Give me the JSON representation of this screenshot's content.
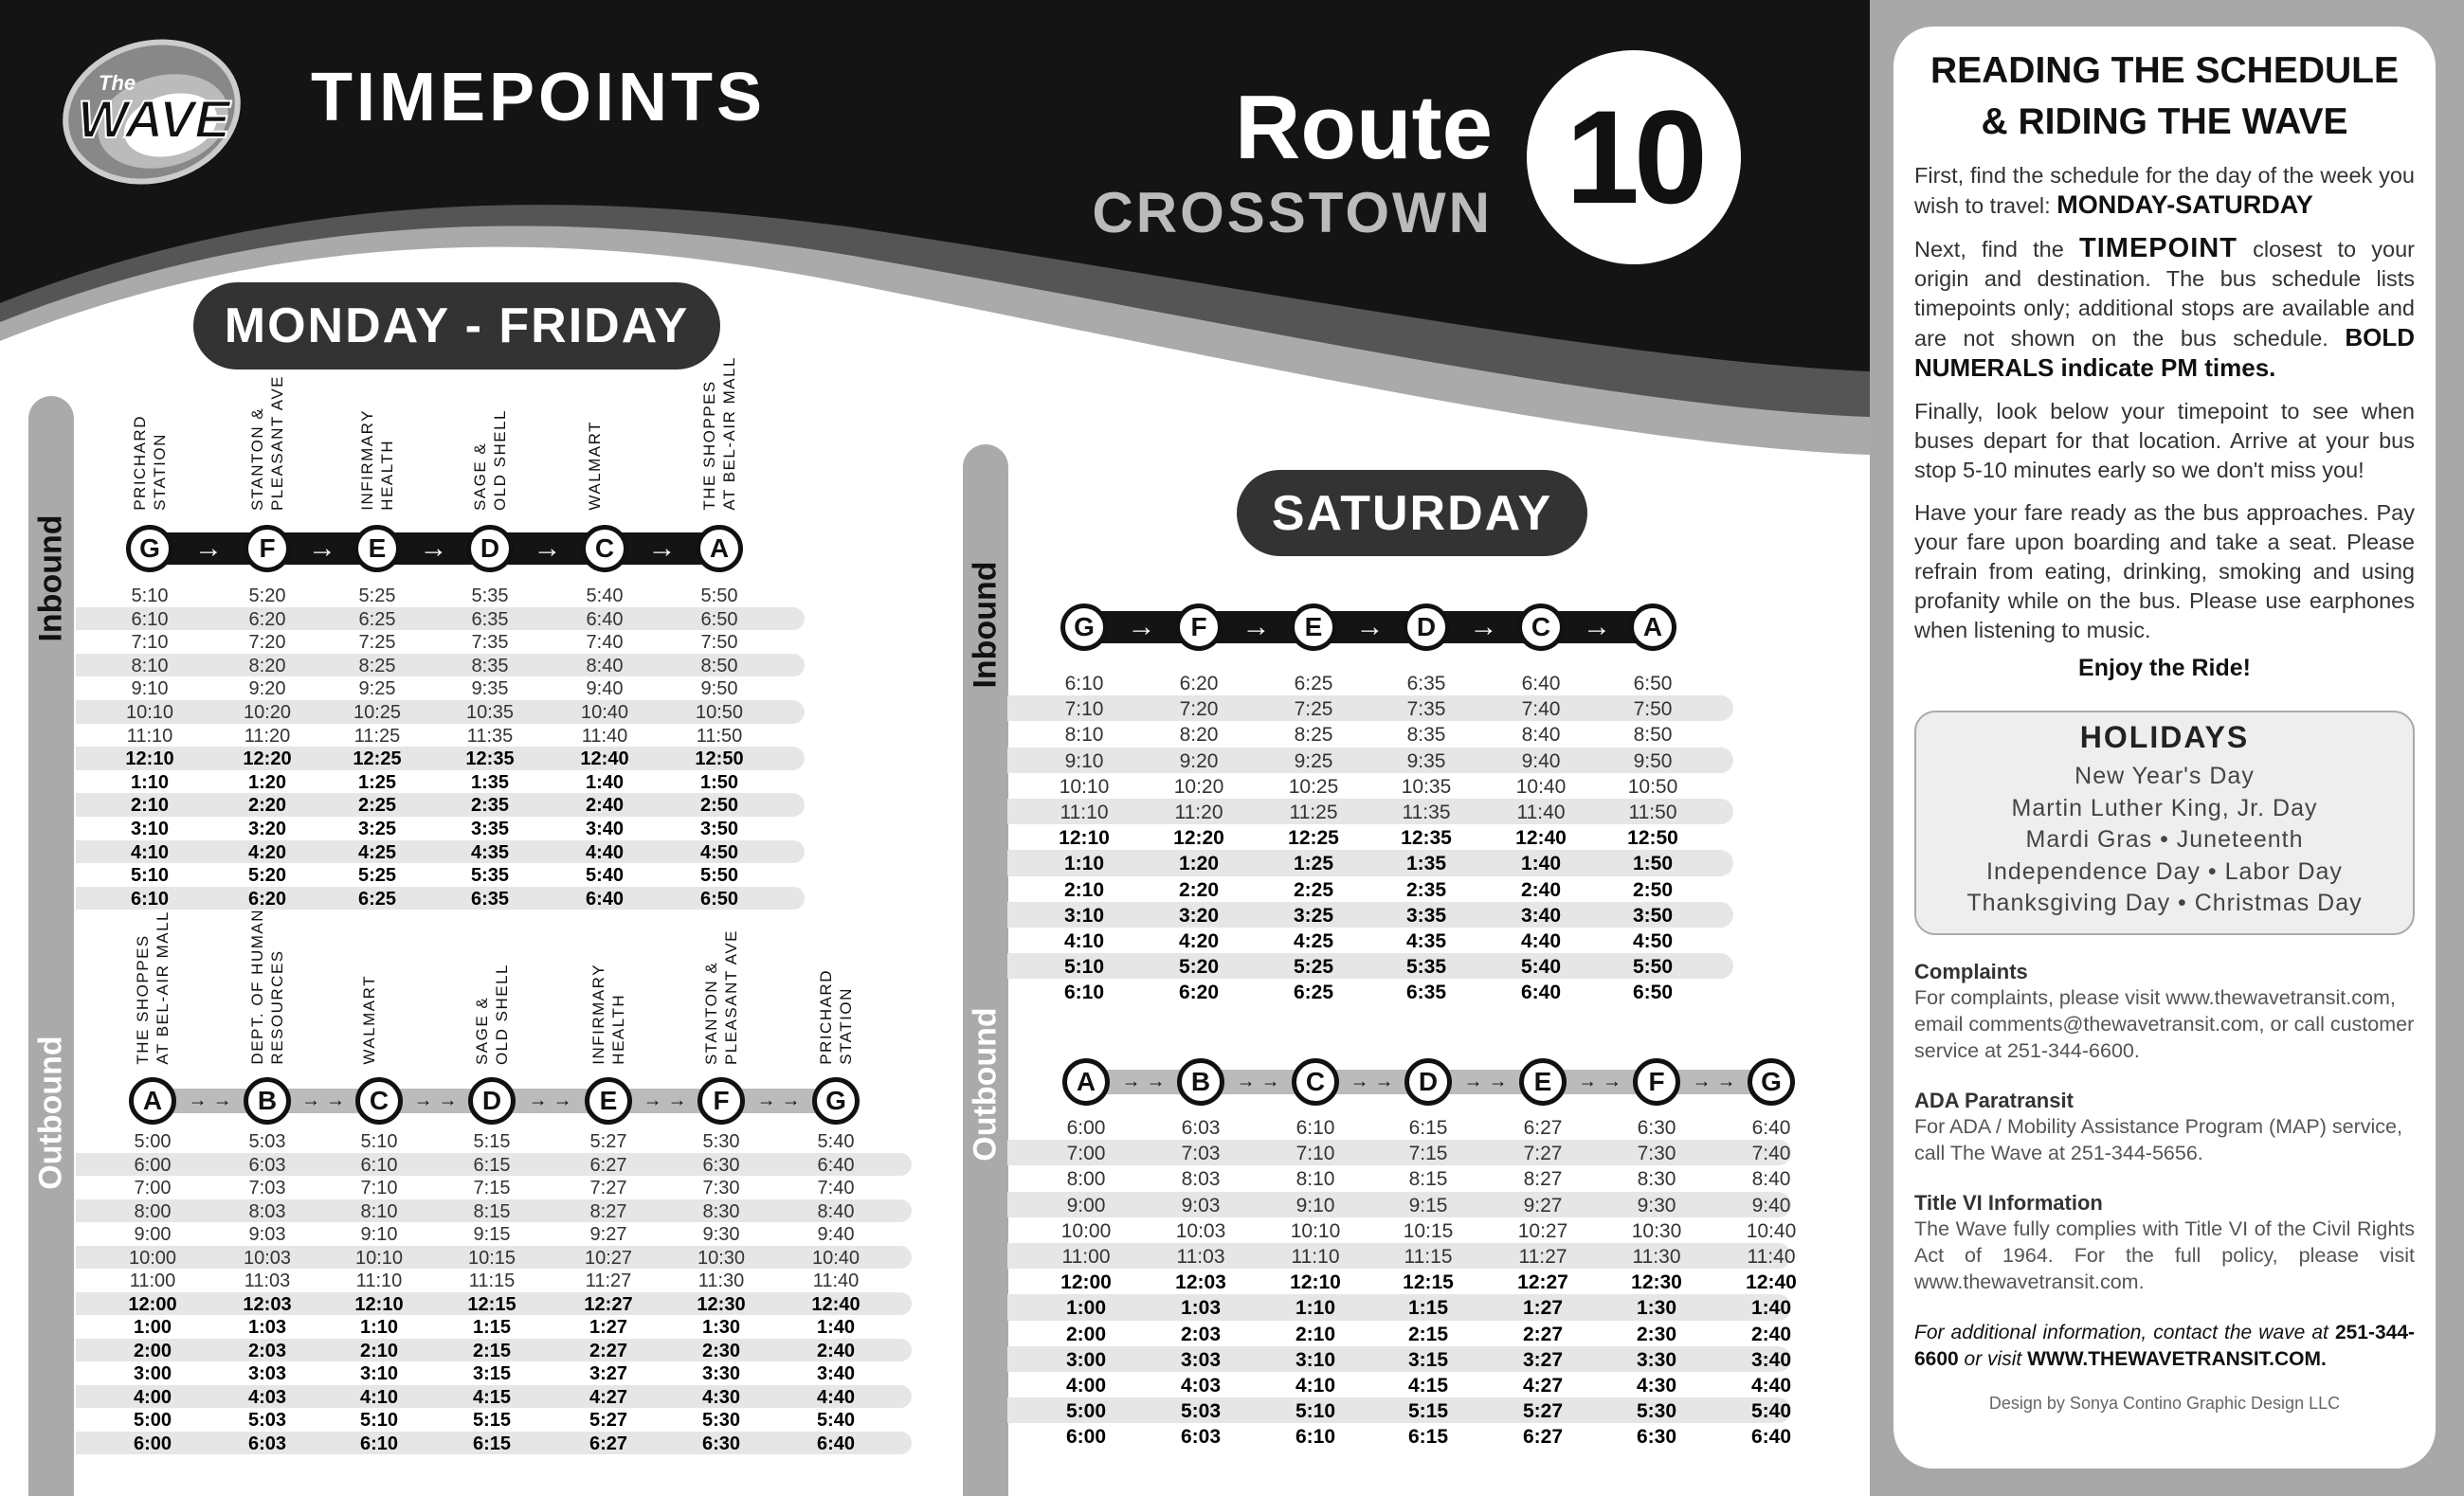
{
  "header": {
    "logo_text": {
      "small": "The",
      "large": "WAVE"
    },
    "title": "TIMEPOINTS",
    "route_word": "Route",
    "route_number": "10",
    "route_name": "CROSSTOWN"
  },
  "weekday": {
    "label": "MONDAY - FRIDAY",
    "inbound": {
      "direction_label": "Inbound",
      "stops": [
        {
          "letter": "G",
          "name": "PRICHARD\nSTATION"
        },
        {
          "letter": "F",
          "name": "STANTON &\nPLEASANT AVE"
        },
        {
          "letter": "E",
          "name": "INFIRMARY\nHEALTH"
        },
        {
          "letter": "D",
          "name": "SAGE &\nOLD SHELL"
        },
        {
          "letter": "C",
          "name": "WALMART"
        },
        {
          "letter": "A",
          "name": "THE SHOPPES\nAT BEL-AIR MALL"
        }
      ],
      "pm_start_row": 7,
      "rows": [
        [
          "5:10",
          "5:20",
          "5:25",
          "5:35",
          "5:40",
          "5:50"
        ],
        [
          "6:10",
          "6:20",
          "6:25",
          "6:35",
          "6:40",
          "6:50"
        ],
        [
          "7:10",
          "7:20",
          "7:25",
          "7:35",
          "7:40",
          "7:50"
        ],
        [
          "8:10",
          "8:20",
          "8:25",
          "8:35",
          "8:40",
          "8:50"
        ],
        [
          "9:10",
          "9:20",
          "9:25",
          "9:35",
          "9:40",
          "9:50"
        ],
        [
          "10:10",
          "10:20",
          "10:25",
          "10:35",
          "10:40",
          "10:50"
        ],
        [
          "11:10",
          "11:20",
          "11:25",
          "11:35",
          "11:40",
          "11:50"
        ],
        [
          "12:10",
          "12:20",
          "12:25",
          "12:35",
          "12:40",
          "12:50"
        ],
        [
          "1:10",
          "1:20",
          "1:25",
          "1:35",
          "1:40",
          "1:50"
        ],
        [
          "2:10",
          "2:20",
          "2:25",
          "2:35",
          "2:40",
          "2:50"
        ],
        [
          "3:10",
          "3:20",
          "3:25",
          "3:35",
          "3:40",
          "3:50"
        ],
        [
          "4:10",
          "4:20",
          "4:25",
          "4:35",
          "4:40",
          "4:50"
        ],
        [
          "5:10",
          "5:20",
          "5:25",
          "5:35",
          "5:40",
          "5:50"
        ],
        [
          "6:10",
          "6:20",
          "6:25",
          "6:35",
          "6:40",
          "6:50"
        ]
      ]
    },
    "outbound": {
      "direction_label": "Outbound",
      "stops": [
        {
          "letter": "A",
          "name": "THE SHOPPES\nAT BEL-AIR MALL"
        },
        {
          "letter": "B",
          "name": "DEPT. OF HUMAN\nRESOURCES"
        },
        {
          "letter": "C",
          "name": "WALMART"
        },
        {
          "letter": "D",
          "name": "SAGE &\nOLD SHELL"
        },
        {
          "letter": "E",
          "name": "INFIRMARY\nHEALTH"
        },
        {
          "letter": "F",
          "name": "STANTON &\nPLEASANT AVE"
        },
        {
          "letter": "G",
          "name": "PRICHARD\nSTATION"
        }
      ],
      "pm_start_row": 7,
      "rows": [
        [
          "5:00",
          "5:03",
          "5:10",
          "5:15",
          "5:27",
          "5:30",
          "5:40"
        ],
        [
          "6:00",
          "6:03",
          "6:10",
          "6:15",
          "6:27",
          "6:30",
          "6:40"
        ],
        [
          "7:00",
          "7:03",
          "7:10",
          "7:15",
          "7:27",
          "7:30",
          "7:40"
        ],
        [
          "8:00",
          "8:03",
          "8:10",
          "8:15",
          "8:27",
          "8:30",
          "8:40"
        ],
        [
          "9:00",
          "9:03",
          "9:10",
          "9:15",
          "9:27",
          "9:30",
          "9:40"
        ],
        [
          "10:00",
          "10:03",
          "10:10",
          "10:15",
          "10:27",
          "10:30",
          "10:40"
        ],
        [
          "11:00",
          "11:03",
          "11:10",
          "11:15",
          "11:27",
          "11:30",
          "11:40"
        ],
        [
          "12:00",
          "12:03",
          "12:10",
          "12:15",
          "12:27",
          "12:30",
          "12:40"
        ],
        [
          "1:00",
          "1:03",
          "1:10",
          "1:15",
          "1:27",
          "1:30",
          "1:40"
        ],
        [
          "2:00",
          "2:03",
          "2:10",
          "2:15",
          "2:27",
          "2:30",
          "2:40"
        ],
        [
          "3:00",
          "3:03",
          "3:10",
          "3:15",
          "3:27",
          "3:30",
          "3:40"
        ],
        [
          "4:00",
          "4:03",
          "4:10",
          "4:15",
          "4:27",
          "4:30",
          "4:40"
        ],
        [
          "5:00",
          "5:03",
          "5:10",
          "5:15",
          "5:27",
          "5:30",
          "5:40"
        ],
        [
          "6:00",
          "6:03",
          "6:10",
          "6:15",
          "6:27",
          "6:30",
          "6:40"
        ]
      ]
    }
  },
  "saturday": {
    "label": "SATURDAY",
    "inbound": {
      "direction_label": "Inbound",
      "stops": [
        {
          "letter": "G"
        },
        {
          "letter": "F"
        },
        {
          "letter": "E"
        },
        {
          "letter": "D"
        },
        {
          "letter": "C"
        },
        {
          "letter": "A"
        }
      ],
      "pm_start_row": 6,
      "rows": [
        [
          "6:10",
          "6:20",
          "6:25",
          "6:35",
          "6:40",
          "6:50"
        ],
        [
          "7:10",
          "7:20",
          "7:25",
          "7:35",
          "7:40",
          "7:50"
        ],
        [
          "8:10",
          "8:20",
          "8:25",
          "8:35",
          "8:40",
          "8:50"
        ],
        [
          "9:10",
          "9:20",
          "9:25",
          "9:35",
          "9:40",
          "9:50"
        ],
        [
          "10:10",
          "10:20",
          "10:25",
          "10:35",
          "10:40",
          "10:50"
        ],
        [
          "11:10",
          "11:20",
          "11:25",
          "11:35",
          "11:40",
          "11:50"
        ],
        [
          "12:10",
          "12:20",
          "12:25",
          "12:35",
          "12:40",
          "12:50"
        ],
        [
          "1:10",
          "1:20",
          "1:25",
          "1:35",
          "1:40",
          "1:50"
        ],
        [
          "2:10",
          "2:20",
          "2:25",
          "2:35",
          "2:40",
          "2:50"
        ],
        [
          "3:10",
          "3:20",
          "3:25",
          "3:35",
          "3:40",
          "3:50"
        ],
        [
          "4:10",
          "4:20",
          "4:25",
          "4:35",
          "4:40",
          "4:50"
        ],
        [
          "5:10",
          "5:20",
          "5:25",
          "5:35",
          "5:40",
          "5:50"
        ],
        [
          "6:10",
          "6:20",
          "6:25",
          "6:35",
          "6:40",
          "6:50"
        ]
      ]
    },
    "outbound": {
      "direction_label": "Outbound",
      "stops": [
        {
          "letter": "A"
        },
        {
          "letter": "B"
        },
        {
          "letter": "C"
        },
        {
          "letter": "D"
        },
        {
          "letter": "E"
        },
        {
          "letter": "F"
        },
        {
          "letter": "G"
        }
      ],
      "pm_start_row": 6,
      "rows": [
        [
          "6:00",
          "6:03",
          "6:10",
          "6:15",
          "6:27",
          "6:30",
          "6:40"
        ],
        [
          "7:00",
          "7:03",
          "7:10",
          "7:15",
          "7:27",
          "7:30",
          "7:40"
        ],
        [
          "8:00",
          "8:03",
          "8:10",
          "8:15",
          "8:27",
          "8:30",
          "8:40"
        ],
        [
          "9:00",
          "9:03",
          "9:10",
          "9:15",
          "9:27",
          "9:30",
          "9:40"
        ],
        [
          "10:00",
          "10:03",
          "10:10",
          "10:15",
          "10:27",
          "10:30",
          "10:40"
        ],
        [
          "11:00",
          "11:03",
          "11:10",
          "11:15",
          "11:27",
          "11:30",
          "11:40"
        ],
        [
          "12:00",
          "12:03",
          "12:10",
          "12:15",
          "12:27",
          "12:30",
          "12:40"
        ],
        [
          "1:00",
          "1:03",
          "1:10",
          "1:15",
          "1:27",
          "1:30",
          "1:40"
        ],
        [
          "2:00",
          "2:03",
          "2:10",
          "2:15",
          "2:27",
          "2:30",
          "2:40"
        ],
        [
          "3:00",
          "3:03",
          "3:10",
          "3:15",
          "3:27",
          "3:30",
          "3:40"
        ],
        [
          "4:00",
          "4:03",
          "4:10",
          "4:15",
          "4:27",
          "4:30",
          "4:40"
        ],
        [
          "5:00",
          "5:03",
          "5:10",
          "5:15",
          "5:27",
          "5:30",
          "5:40"
        ],
        [
          "6:00",
          "6:03",
          "6:10",
          "6:15",
          "6:27",
          "6:30",
          "6:40"
        ]
      ]
    }
  },
  "arrow_glyph": "→",
  "sidebar": {
    "title_line1": "READING THE SCHEDULE",
    "title_line2": "& RIDING THE WAVE",
    "p1_text": "First, find the schedule for the day of the week you wish to travel: ",
    "p1_bold": "MONDAY-SATURDAY",
    "p2_start": "Next, find the ",
    "p2_bold": "TIMEPOINT",
    "p2_text": " closest to your origin and destination. The bus schedule lists timepoints only; additional stops are available and are not shown on the bus schedule. ",
    "p2_bold_end": "BOLD NUMERALS indicate PM times.",
    "p3": "Finally, look below your timepoint to see when buses depart for that location. Arrive at your bus stop 5-10 minutes early so we don't miss you!",
    "p4": "Have your fare ready as the bus approaches. Pay your fare upon boarding and take a seat. Please refrain from eating, drinking, smoking and using profanity while on the bus. Please use earphones when listening to music.",
    "enjoy": "Enjoy the Ride!",
    "holidays": {
      "title": "HOLIDAYS",
      "lines": [
        "New Year's Day",
        "Martin Luther King, Jr. Day",
        "Mardi Gras • Juneteenth",
        "Independence Day • Labor Day",
        "Thanksgiving Day • Christmas Day"
      ]
    },
    "complaints": {
      "title": "Complaints",
      "text": "For complaints, please visit www.thewavetransit.com, email comments@thewavetransit.com, or call customer service at 251-344-6600."
    },
    "ada": {
      "title": "ADA Paratransit",
      "text": "For ADA / Mobility Assistance Program (MAP) service, call The Wave at 251-344-5656."
    },
    "title_vi": {
      "title": "Title VI Information",
      "text": "The Wave fully complies with Title VI of the Civil Rights Act of 1964. For the full policy, please visit www.thewavetransit.com."
    },
    "contact_italic": "For additional information, contact the wave at ",
    "contact_phone": "251-344-6600",
    "contact_mid": " or visit ",
    "contact_url": "WWW.THEWAVETRANSIT.COM.",
    "credit": "Design by Sonya Contino Graphic Design LLC"
  },
  "colors": {
    "black": "#141414",
    "dark_gray": "#555555",
    "light_gray": "#aaaaaa",
    "stripe": "#e6e6e6"
  }
}
